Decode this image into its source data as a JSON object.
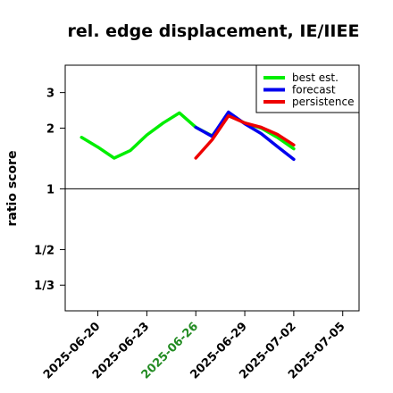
{
  "chart_data": {
    "type": "line",
    "title": "rel. edge displacement, IE/IIEE",
    "xlabel": "",
    "ylabel": "ratio score",
    "y_scale": "log",
    "y_ticks": [
      {
        "value": 3,
        "label": "3"
      },
      {
        "value": 2,
        "label": "2"
      },
      {
        "value": 1,
        "label": "1"
      },
      {
        "value": 0.5,
        "label": "1/2"
      },
      {
        "value": 0.3333,
        "label": "1/3"
      }
    ],
    "ylim": [
      0.2486,
      4.1
    ],
    "xlim": [
      "2025-06-18",
      "2025-07-06"
    ],
    "x_ticks": [
      {
        "value": "2025-06-20",
        "label": "2025-06-20",
        "color": "#000000"
      },
      {
        "value": "2025-06-23",
        "label": "2025-06-23",
        "color": "#000000"
      },
      {
        "value": "2025-06-26",
        "label": "2025-06-26",
        "color": "#228B22"
      },
      {
        "value": "2025-06-29",
        "label": "2025-06-29",
        "color": "#000000"
      },
      {
        "value": "2025-07-02",
        "label": "2025-07-02",
        "color": "#000000"
      },
      {
        "value": "2025-07-05",
        "label": "2025-07-05",
        "color": "#000000"
      }
    ],
    "reference_line": 1,
    "legend": {
      "position": "top-right",
      "entries": [
        "best est.",
        "forecast",
        "persistence"
      ]
    },
    "series": [
      {
        "name": "best est.",
        "color": "#00ee00",
        "x": [
          "2025-06-19",
          "2025-06-20",
          "2025-06-21",
          "2025-06-22",
          "2025-06-23",
          "2025-06-24",
          "2025-06-25",
          "2025-06-26",
          "2025-06-27",
          "2025-06-28",
          "2025-06-29",
          "2025-06-30",
          "2025-07-01",
          "2025-07-02"
        ],
        "values": [
          1.8,
          1.61,
          1.42,
          1.55,
          1.85,
          2.12,
          2.38,
          2.02,
          1.83,
          2.32,
          2.12,
          2.0,
          1.8,
          1.58
        ]
      },
      {
        "name": "forecast",
        "color": "#0000ee",
        "x": [
          "2025-06-26",
          "2025-06-27",
          "2025-06-28",
          "2025-06-29",
          "2025-06-30",
          "2025-07-01",
          "2025-07-02"
        ],
        "values": [
          2.02,
          1.82,
          2.4,
          2.1,
          1.88,
          1.62,
          1.4
        ]
      },
      {
        "name": "persistence",
        "color": "#ee0000",
        "x": [
          "2025-06-26",
          "2025-06-27",
          "2025-06-28",
          "2025-06-29",
          "2025-06-30",
          "2025-07-01",
          "2025-07-02"
        ],
        "values": [
          1.42,
          1.75,
          2.3,
          2.12,
          2.02,
          1.86,
          1.65
        ]
      }
    ]
  }
}
